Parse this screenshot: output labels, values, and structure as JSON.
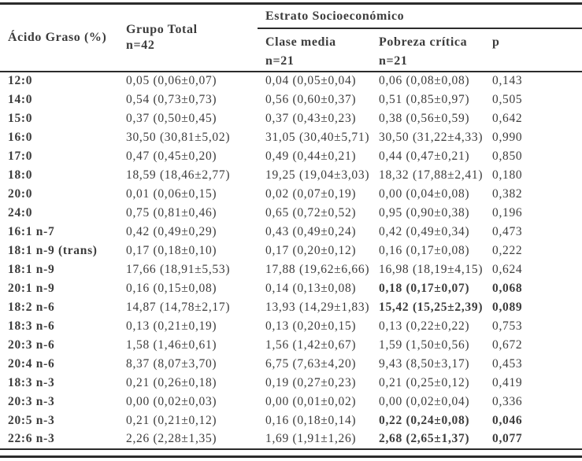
{
  "colors": {
    "text": "#3c3c3c",
    "rule": "#2b2b2b",
    "background": "#ffffff"
  },
  "table": {
    "header": {
      "acido_graso": "Ácido Graso (%)",
      "grupo_total": "Grupo Total",
      "grupo_total_n": "n=42",
      "estrato": "Estrato Socioeconómico",
      "clase_media": "Clase media",
      "clase_media_n": "n=21",
      "pobreza_critica": "Pobreza crítica",
      "pobreza_critica_n": "n=21",
      "p": "p"
    },
    "rows": [
      {
        "acid": "12:0",
        "total": "0,05 (0,06±0,07)",
        "clase_media": "0,04 (0,05±0,04)",
        "pobreza_critica": "0,06 (0,08±0,08)",
        "p": "0,143",
        "bold_highlight": false
      },
      {
        "acid": "14:0",
        "total": "0,54 (0,73±0,73)",
        "clase_media": "0,56 (0,60±0,37)",
        "pobreza_critica": "0,51 (0,85±0,97)",
        "p": "0,505",
        "bold_highlight": false
      },
      {
        "acid": "15:0",
        "total": "0,37 (0,50±0,45)",
        "clase_media": "0,37 (0,43±0,23)",
        "pobreza_critica": "0,38 (0,56±0,59)",
        "p": "0,642",
        "bold_highlight": false
      },
      {
        "acid": "16:0",
        "total": "30,50 (30,81±5,02)",
        "clase_media": "31,05 (30,40±5,71)",
        "pobreza_critica": "30,50 (31,22±4,33)",
        "p": "0,990",
        "bold_highlight": false
      },
      {
        "acid": "17:0",
        "total": "0,47 (0,45±0,20)",
        "clase_media": "0,49 (0,44±0,21)",
        "pobreza_critica": "0,44 (0,47±0,21)",
        "p": "0,850",
        "bold_highlight": false
      },
      {
        "acid": "18:0",
        "total": "18,59 (18,46±2,77)",
        "clase_media": "19,25 (19,04±3,03)",
        "pobreza_critica": "18,32 (17,88±2,41)",
        "p": "0,180",
        "bold_highlight": false
      },
      {
        "acid": "20:0",
        "total": "0,01 (0,06±0,15)",
        "clase_media": "0,02 (0,07±0,19)",
        "pobreza_critica": "0,00 (0,04±0,08)",
        "p": "0,382",
        "bold_highlight": false
      },
      {
        "acid": "24:0",
        "total": "0,75 (0,81±0,46)",
        "clase_media": "0,65 (0,72±0,52)",
        "pobreza_critica": "0,95 (0,90±0,38)",
        "p": "0,196",
        "bold_highlight": false
      },
      {
        "acid": "16:1 n-7",
        "total": "0,42 (0,49±0,29)",
        "clase_media": "0,43 (0,49±0,24)",
        "pobreza_critica": "0,42 (0,49±0,34)",
        "p": "0,473",
        "bold_highlight": false
      },
      {
        "acid": "18:1 n-9 (trans)",
        "total": "0,17 (0,18±0,10)",
        "clase_media": "0,17 (0,20±0,12)",
        "pobreza_critica": "0,16 (0,17±0,08)",
        "p": "0,222",
        "bold_highlight": false
      },
      {
        "acid": "18:1 n-9",
        "total": "17,66 (18,91±5,53)",
        "clase_media": "17,88 (19,62±6,66)",
        "pobreza_critica": "16,98 (18,19±4,15)",
        "p": "0,624",
        "bold_highlight": false
      },
      {
        "acid": "20:1 n-9",
        "total": "0,16 (0,15±0,08)",
        "clase_media": "0,14 (0,13±0,08)",
        "pobreza_critica": "0,18 (0,17±0,07)",
        "p": "0,068",
        "bold_highlight": true
      },
      {
        "acid": "18:2 n-6",
        "total": "14,87 (14,78±2,17)",
        "clase_media": "13,93 (14,29±1,83)",
        "pobreza_critica": "15,42 (15,25±2,39)",
        "p": "0,089",
        "bold_highlight": true
      },
      {
        "acid": "18:3 n-6",
        "total": "0,13 (0,21±0,19)",
        "clase_media": "0,13 (0,20±0,15)",
        "pobreza_critica": "0,13 (0,22±0,22)",
        "p": "0,753",
        "bold_highlight": false
      },
      {
        "acid": "20:3 n-6",
        "total": "1,58 (1,46±0,61)",
        "clase_media": "1,56 (1,42±0,67)",
        "pobreza_critica": "1,59 (1,50±0,56)",
        "p": "0,672",
        "bold_highlight": false
      },
      {
        "acid": "20:4 n-6",
        "total": "8,37 (8,07±3,70)",
        "clase_media": "6,75 (7,63±4,20)",
        "pobreza_critica": "9,43 (8,50±3,17)",
        "p": "0,453",
        "bold_highlight": false
      },
      {
        "acid": "18:3 n-3",
        "total": "0,21 (0,26±0,18)",
        "clase_media": "0,19 (0,27±0,23)",
        "pobreza_critica": "0,21 (0,25±0,12)",
        "p": "0,419",
        "bold_highlight": false
      },
      {
        "acid": "20:3 n-3",
        "total": "0,00 (0,02±0,03)",
        "clase_media": "0,00 (0,01±0,02)",
        "pobreza_critica": "0,00 (0,02±0,04)",
        "p": "0,336",
        "bold_highlight": false
      },
      {
        "acid": "20:5 n-3",
        "total": "0,21 (0,21±0,12)",
        "clase_media": "0,16 (0,18±0,14)",
        "pobreza_critica": "0,22 (0,24±0,08)",
        "p": "0,046",
        "bold_highlight": true
      },
      {
        "acid": "22:6 n-3",
        "total": "2,26 (2,28±1,35)",
        "clase_media": "1,69 (1,91±1,26)",
        "pobreza_critica": "2,68 (2,65±1,37)",
        "p": "0,077",
        "bold_highlight": true
      }
    ]
  }
}
